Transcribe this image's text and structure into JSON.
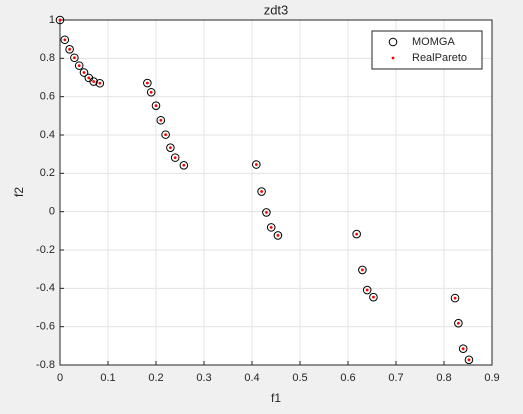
{
  "chart_data": {
    "type": "scatter",
    "title": "zdt3",
    "x_label": "f1",
    "y_label": "f2",
    "x": [
      0,
      0.01,
      0.02,
      0.03,
      0.04,
      0.05,
      0.06,
      0.07,
      0.083,
      0.182,
      0.19,
      0.2,
      0.21,
      0.22,
      0.23,
      0.24,
      0.258,
      0.409,
      0.42,
      0.43,
      0.44,
      0.454,
      0.618,
      0.63,
      0.64,
      0.653,
      0.823,
      0.83,
      0.84,
      0.852
    ],
    "series": [
      {
        "name": "MOMGA",
        "color": "#000000",
        "values": [
          1,
          0.897,
          0.847,
          0.803,
          0.762,
          0.726,
          0.698,
          0.679,
          0.67,
          0.671,
          0.623,
          0.553,
          0.477,
          0.402,
          0.334,
          0.282,
          0.242,
          0.246,
          0.105,
          -0.004,
          -0.082,
          -0.124,
          -0.117,
          -0.304,
          -0.409,
          -0.446,
          -0.451,
          -0.582,
          -0.715,
          -0.773
        ]
      },
      {
        "name": "RealPareto",
        "color": "#ff0000",
        "values": [
          1,
          0.897,
          0.847,
          0.803,
          0.762,
          0.726,
          0.698,
          0.679,
          0.67,
          0.671,
          0.623,
          0.553,
          0.477,
          0.402,
          0.334,
          0.282,
          0.242,
          0.246,
          0.105,
          -0.004,
          -0.082,
          -0.124,
          -0.117,
          -0.304,
          -0.409,
          -0.446,
          -0.451,
          -0.582,
          -0.715,
          -0.773
        ]
      }
    ],
    "xlim": [
      0,
      0.9
    ],
    "xticks": [
      0,
      0.1,
      0.2,
      0.3,
      0.4,
      0.5,
      0.6,
      0.7,
      0.8,
      0.9
    ],
    "ylim": [
      -0.8,
      1
    ],
    "yticks": [
      -0.8,
      -0.6,
      -0.4,
      -0.2,
      0,
      0.2,
      0.4,
      0.6,
      0.8,
      1
    ],
    "grid": true,
    "legend": "top-right"
  }
}
